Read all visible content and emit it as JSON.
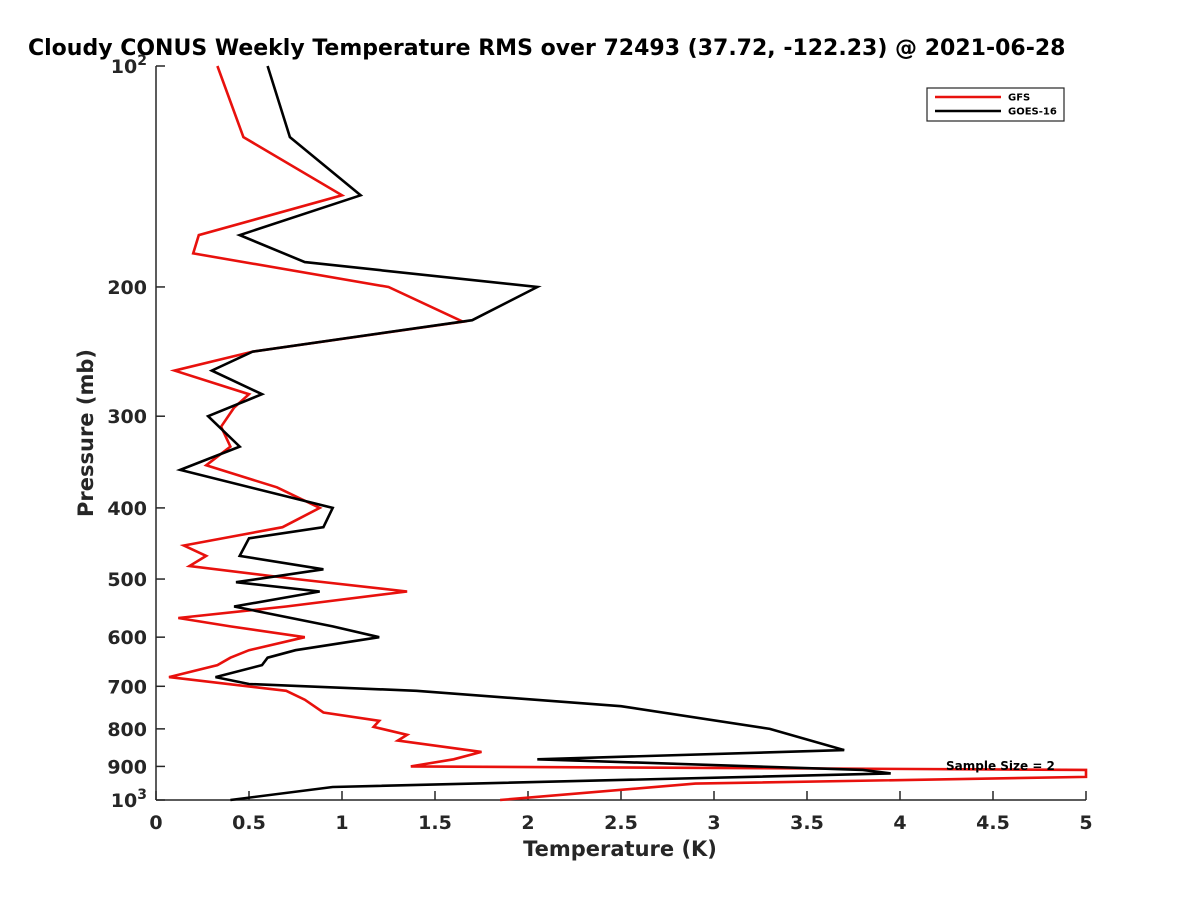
{
  "chart_data": {
    "type": "line",
    "title": "Cloudy CONUS Weekly Temperature RMS over 72493 (37.72, -122.23) @ 2021-06-28",
    "xlabel": "Temperature (K)",
    "ylabel": "Pressure (mb)",
    "xlim": [
      0,
      5
    ],
    "ylim": [
      100,
      1000
    ],
    "y_scale": "log",
    "y_direction": "reversed",
    "grid": false,
    "legend_position": "top-right",
    "x_ticks": [
      "0",
      "0.5",
      "1",
      "1.5",
      "2",
      "2.5",
      "3",
      "3.5",
      "4",
      "4.5",
      "5"
    ],
    "y_ticks": [
      {
        "value": 100,
        "label": "10",
        "sup": "2"
      },
      {
        "value": 200,
        "label": "200",
        "sup": ""
      },
      {
        "value": 300,
        "label": "300",
        "sup": ""
      },
      {
        "value": 400,
        "label": "400",
        "sup": ""
      },
      {
        "value": 500,
        "label": "500",
        "sup": ""
      },
      {
        "value": 600,
        "label": "600",
        "sup": ""
      },
      {
        "value": 700,
        "label": "700",
        "sup": ""
      },
      {
        "value": 800,
        "label": "800",
        "sup": ""
      },
      {
        "value": 900,
        "label": "900",
        "sup": ""
      },
      {
        "value": 1000,
        "label": "10",
        "sup": "3"
      }
    ],
    "annotation": "Sample Size = 2",
    "series": [
      {
        "name": "GFS",
        "color": "#e8110d",
        "points": [
          [
            0.33,
            100
          ],
          [
            0.47,
            125
          ],
          [
            1.0,
            150
          ],
          [
            0.23,
            170
          ],
          [
            0.2,
            180
          ],
          [
            1.25,
            200
          ],
          [
            1.65,
            223
          ],
          [
            0.52,
            245
          ],
          [
            0.1,
            260
          ],
          [
            0.5,
            280
          ],
          [
            0.42,
            292
          ],
          [
            0.35,
            310
          ],
          [
            0.4,
            330
          ],
          [
            0.27,
            350
          ],
          [
            0.65,
            375
          ],
          [
            0.88,
            400
          ],
          [
            0.68,
            425
          ],
          [
            0.15,
            450
          ],
          [
            0.27,
            465
          ],
          [
            0.18,
            480
          ],
          [
            0.75,
            500
          ],
          [
            1.35,
            520
          ],
          [
            0.7,
            545
          ],
          [
            0.12,
            565
          ],
          [
            0.4,
            580
          ],
          [
            0.8,
            600
          ],
          [
            0.5,
            625
          ],
          [
            0.4,
            640
          ],
          [
            0.33,
            655
          ],
          [
            0.07,
            680
          ],
          [
            0.7,
            710
          ],
          [
            0.8,
            730
          ],
          [
            0.9,
            760
          ],
          [
            1.2,
            780
          ],
          [
            1.17,
            795
          ],
          [
            1.35,
            815
          ],
          [
            1.3,
            830
          ],
          [
            1.75,
            860
          ],
          [
            1.6,
            880
          ],
          [
            1.37,
            900
          ],
          [
            5.0,
            910
          ],
          [
            5.0,
            930
          ],
          [
            2.9,
            950
          ],
          [
            1.85,
            1000
          ]
        ]
      },
      {
        "name": "GOES-16",
        "color": "#000000",
        "points": [
          [
            0.6,
            100
          ],
          [
            0.72,
            125
          ],
          [
            1.1,
            150
          ],
          [
            0.45,
            170
          ],
          [
            0.8,
            185
          ],
          [
            2.05,
            200
          ],
          [
            1.7,
            222
          ],
          [
            0.52,
            245
          ],
          [
            0.3,
            260
          ],
          [
            0.57,
            280
          ],
          [
            0.28,
            300
          ],
          [
            0.45,
            330
          ],
          [
            0.13,
            355
          ],
          [
            0.95,
            400
          ],
          [
            0.9,
            425
          ],
          [
            0.5,
            440
          ],
          [
            0.45,
            465
          ],
          [
            0.9,
            485
          ],
          [
            0.43,
            505
          ],
          [
            0.88,
            520
          ],
          [
            0.42,
            545
          ],
          [
            0.95,
            580
          ],
          [
            1.2,
            600
          ],
          [
            0.75,
            625
          ],
          [
            0.6,
            640
          ],
          [
            0.57,
            655
          ],
          [
            0.32,
            680
          ],
          [
            0.5,
            695
          ],
          [
            1.4,
            710
          ],
          [
            2.5,
            745
          ],
          [
            3.3,
            800
          ],
          [
            3.7,
            855
          ],
          [
            2.05,
            880
          ],
          [
            3.8,
            910
          ],
          [
            3.95,
            920
          ],
          [
            0.95,
            960
          ],
          [
            0.4,
            1000
          ]
        ]
      }
    ]
  }
}
